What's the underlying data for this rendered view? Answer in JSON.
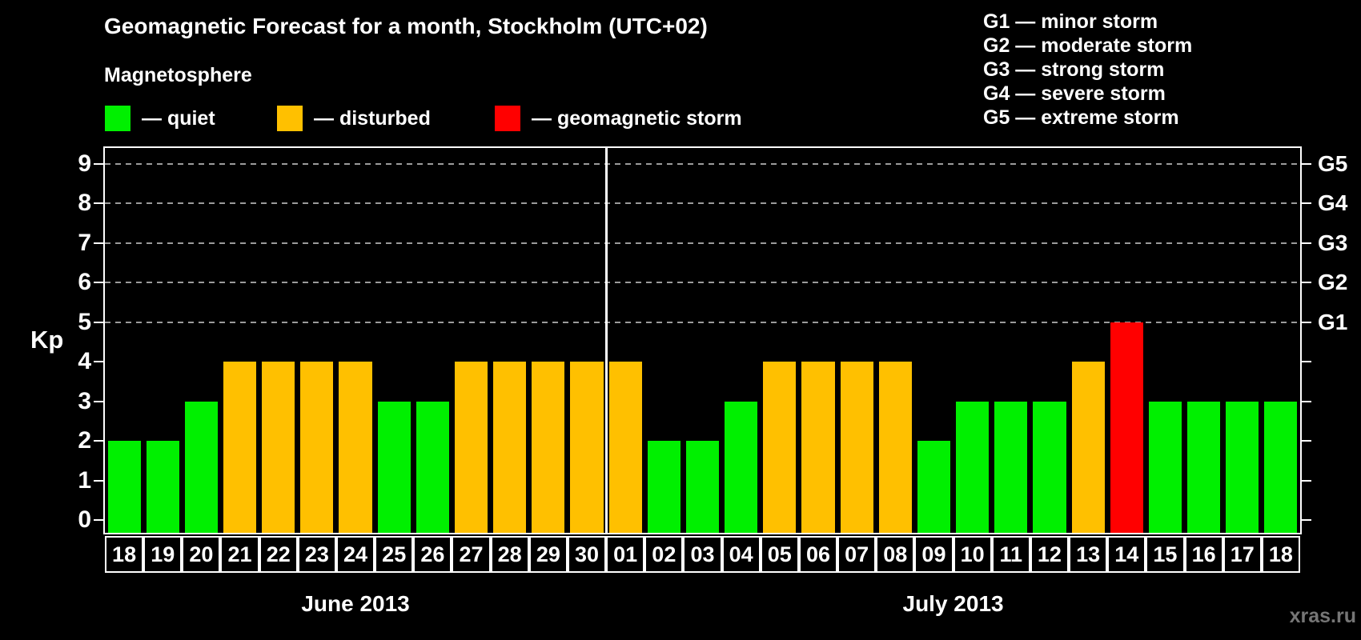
{
  "header": {
    "title": "Geomagnetic Forecast for a month, Stockholm (UTC+02)",
    "subtitle": "Magnetosphere"
  },
  "magnetosphere_legend": [
    {
      "status": "quiet",
      "label": "— quiet",
      "color": "#00f000"
    },
    {
      "status": "disturbed",
      "label": "— disturbed",
      "color": "#ffc000"
    },
    {
      "status": "storm",
      "label": "— geomagnetic storm",
      "color": "#ff0000"
    }
  ],
  "storm_scale_legend": [
    {
      "code": "G1",
      "label": "G1 — minor storm",
      "kp": 5
    },
    {
      "code": "G2",
      "label": "G2 — moderate storm",
      "kp": 6
    },
    {
      "code": "G3",
      "label": "G3 — strong storm",
      "kp": 7
    },
    {
      "code": "G4",
      "label": "G4 — severe storm",
      "kp": 8
    },
    {
      "code": "G5",
      "label": "G5 — extreme storm",
      "kp": 9
    }
  ],
  "chart_data": {
    "type": "bar",
    "ylabel": "Kp",
    "ylim": [
      0,
      9
    ],
    "yticks": [
      0,
      1,
      2,
      3,
      4,
      5,
      6,
      7,
      8,
      9
    ],
    "gridline_kp_levels": [
      5,
      6,
      7,
      8,
      9
    ],
    "status_colors": {
      "quiet": "#00f000",
      "disturbed": "#ffc000",
      "storm": "#ff0000"
    },
    "months": [
      {
        "label": "June 2013",
        "days": [
          {
            "date": "18",
            "kp": 2,
            "status": "quiet"
          },
          {
            "date": "19",
            "kp": 2,
            "status": "quiet"
          },
          {
            "date": "20",
            "kp": 3,
            "status": "quiet"
          },
          {
            "date": "21",
            "kp": 4,
            "status": "disturbed"
          },
          {
            "date": "22",
            "kp": 4,
            "status": "disturbed"
          },
          {
            "date": "23",
            "kp": 4,
            "status": "disturbed"
          },
          {
            "date": "24",
            "kp": 4,
            "status": "disturbed"
          },
          {
            "date": "25",
            "kp": 3,
            "status": "quiet"
          },
          {
            "date": "26",
            "kp": 3,
            "status": "quiet"
          },
          {
            "date": "27",
            "kp": 4,
            "status": "disturbed"
          },
          {
            "date": "28",
            "kp": 4,
            "status": "disturbed"
          },
          {
            "date": "29",
            "kp": 4,
            "status": "disturbed"
          },
          {
            "date": "30",
            "kp": 4,
            "status": "disturbed"
          }
        ]
      },
      {
        "label": "July 2013",
        "days": [
          {
            "date": "01",
            "kp": 4,
            "status": "disturbed"
          },
          {
            "date": "02",
            "kp": 2,
            "status": "quiet"
          },
          {
            "date": "03",
            "kp": 2,
            "status": "quiet"
          },
          {
            "date": "04",
            "kp": 3,
            "status": "quiet"
          },
          {
            "date": "05",
            "kp": 4,
            "status": "disturbed"
          },
          {
            "date": "06",
            "kp": 4,
            "status": "disturbed"
          },
          {
            "date": "07",
            "kp": 4,
            "status": "disturbed"
          },
          {
            "date": "08",
            "kp": 4,
            "status": "disturbed"
          },
          {
            "date": "09",
            "kp": 2,
            "status": "quiet"
          },
          {
            "date": "10",
            "kp": 3,
            "status": "quiet"
          },
          {
            "date": "11",
            "kp": 3,
            "status": "quiet"
          },
          {
            "date": "12",
            "kp": 3,
            "status": "quiet"
          },
          {
            "date": "13",
            "kp": 4,
            "status": "disturbed"
          },
          {
            "date": "14",
            "kp": 5,
            "status": "storm"
          },
          {
            "date": "15",
            "kp": 3,
            "status": "quiet"
          },
          {
            "date": "16",
            "kp": 3,
            "status": "quiet"
          },
          {
            "date": "17",
            "kp": 3,
            "status": "quiet"
          },
          {
            "date": "18",
            "kp": 3,
            "status": "quiet"
          }
        ]
      }
    ]
  },
  "watermark": "xras.ru"
}
